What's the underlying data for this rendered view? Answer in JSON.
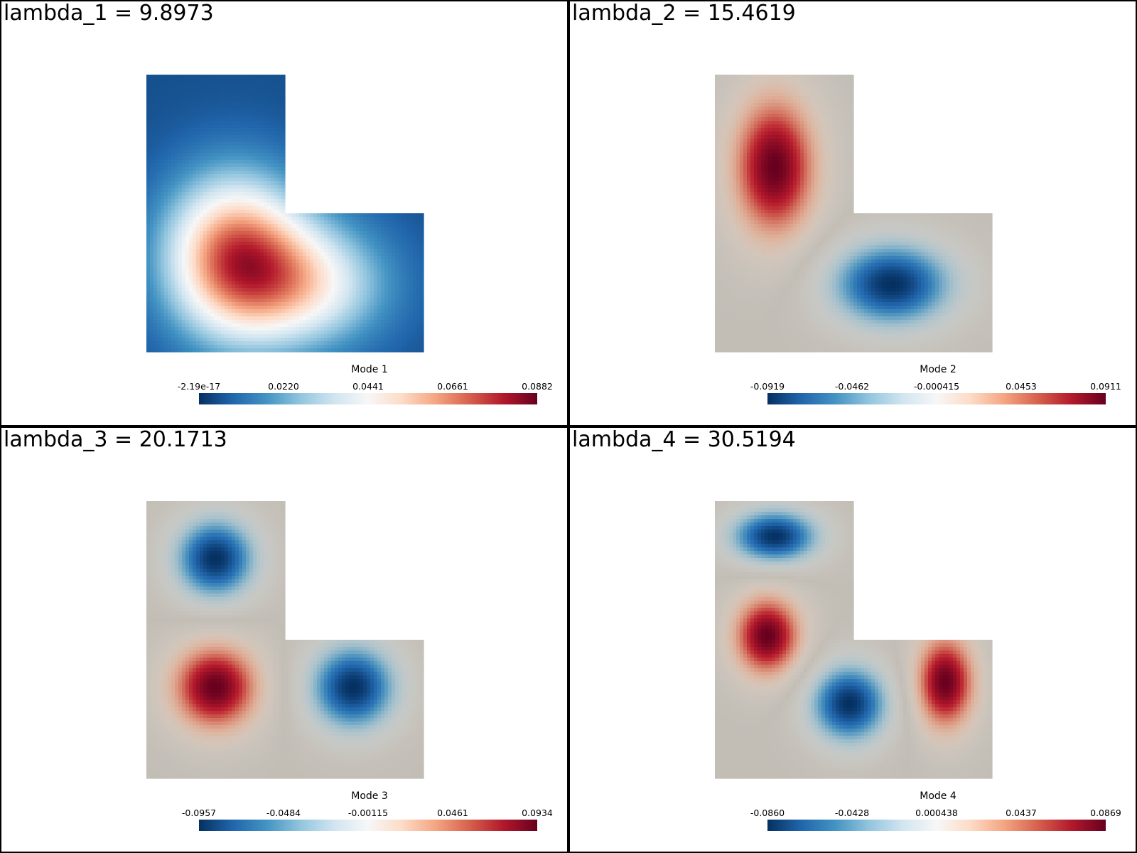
{
  "panels": [
    {
      "title": "lambda_1 = 9.8973",
      "colorbar": {
        "title": "Mode 1",
        "ticks": [
          "-2.19e-17",
          "0.0220",
          "0.0441",
          "0.0661",
          "0.0882"
        ]
      },
      "field": "mode1"
    },
    {
      "title": "lambda_2 = 15.4619",
      "colorbar": {
        "title": "Mode 2",
        "ticks": [
          "-0.0919",
          "-0.0462",
          "-0.000415",
          "0.0453",
          "0.0911"
        ]
      },
      "field": "mode2"
    },
    {
      "title": "lambda_3 = 20.1713",
      "colorbar": {
        "title": "Mode 3",
        "ticks": [
          "-0.0957",
          "-0.0484",
          "-0.00115",
          "0.0461",
          "0.0934"
        ]
      },
      "field": "mode3"
    },
    {
      "title": "lambda_4 = 30.5194",
      "colorbar": {
        "title": "Mode 4",
        "ticks": [
          "-0.0860",
          "-0.0428",
          "0.000438",
          "0.0437",
          "0.0869"
        ]
      },
      "field": "mode4"
    }
  ],
  "colors": {
    "colormap": [
      "#053061",
      "#2166ac",
      "#4393c3",
      "#92c5de",
      "#d1e5f0",
      "#f7f7f7",
      "#fddbc7",
      "#f4a582",
      "#d6604d",
      "#b2182b",
      "#67001f"
    ],
    "neutral": "#c2bdb5",
    "border": "#000000"
  }
}
